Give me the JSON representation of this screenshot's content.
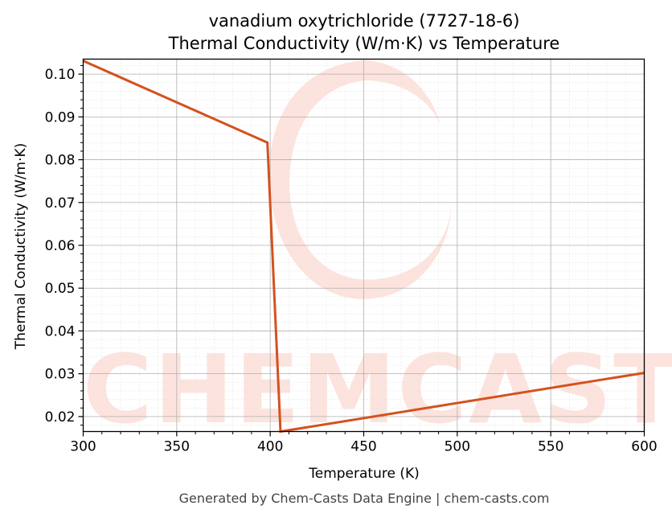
{
  "chart_data": {
    "type": "line",
    "title_line1": "vanadium oxytrichloride (7727-18-6)",
    "title_line2": "Thermal Conductivity (W/m·K) vs Temperature",
    "xlabel": "Temperature (K)",
    "ylabel": "Thermal Conductivity (W/m·K)",
    "xlim": [
      300,
      600
    ],
    "ylim": [
      0.0165,
      0.1035
    ],
    "x_ticks": [
      300,
      350,
      400,
      450,
      500,
      550,
      600
    ],
    "y_ticks": [
      0.02,
      0.03,
      0.04,
      0.05,
      0.06,
      0.07,
      0.08,
      0.09,
      0.1
    ],
    "y_tick_labels": [
      "0.02",
      "0.03",
      "0.04",
      "0.05",
      "0.06",
      "0.07",
      "0.08",
      "0.09",
      "0.10"
    ],
    "grid": true,
    "series": [
      {
        "color": "#d4511e",
        "x": [
          300,
          398.5,
          405.5,
          600
        ],
        "y": [
          0.1031,
          0.084,
          0.0165,
          0.0302
        ]
      }
    ]
  },
  "footer": "Generated by Chem-Casts Data Engine | chem-casts.com",
  "watermark": {
    "text": "CHEMCASTS",
    "color": "#fde3dd"
  }
}
